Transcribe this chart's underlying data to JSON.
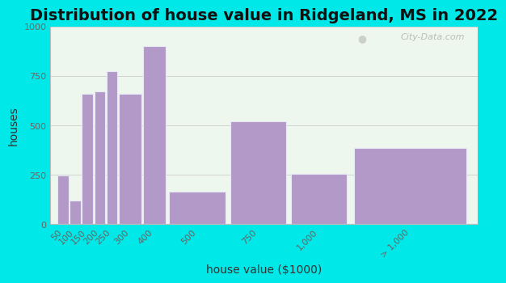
{
  "title": "Distribution of house value in Ridgeland, MS in 2022",
  "xlabel": "house value ($1000)",
  "ylabel": "houses",
  "bar_labels": [
    "50",
    "100",
    "150",
    "200",
    "250",
    "300",
    "400",
    "500",
    "750",
    "1,000",
    "> 1,000"
  ],
  "bar_lefts": [
    50,
    100,
    150,
    200,
    250,
    300,
    400,
    500,
    750,
    1000,
    1250
  ],
  "bar_widths": [
    50,
    50,
    50,
    50,
    50,
    100,
    100,
    250,
    250,
    250,
    500
  ],
  "bar_values": [
    245,
    120,
    660,
    670,
    775,
    660,
    900,
    165,
    520,
    255,
    385
  ],
  "bar_color": "#b399c8",
  "bar_edge_color": "#e8e8f8",
  "bg_outer": "#00e8e8",
  "bg_plot": "#edf7ee",
  "ylim": [
    0,
    1000
  ],
  "yticks": [
    0,
    250,
    500,
    750,
    1000
  ],
  "tick_label_color": "#666666",
  "watermark": "City-Data.com",
  "title_fontsize": 14,
  "label_fontsize": 10,
  "tick_fontsize": 8
}
